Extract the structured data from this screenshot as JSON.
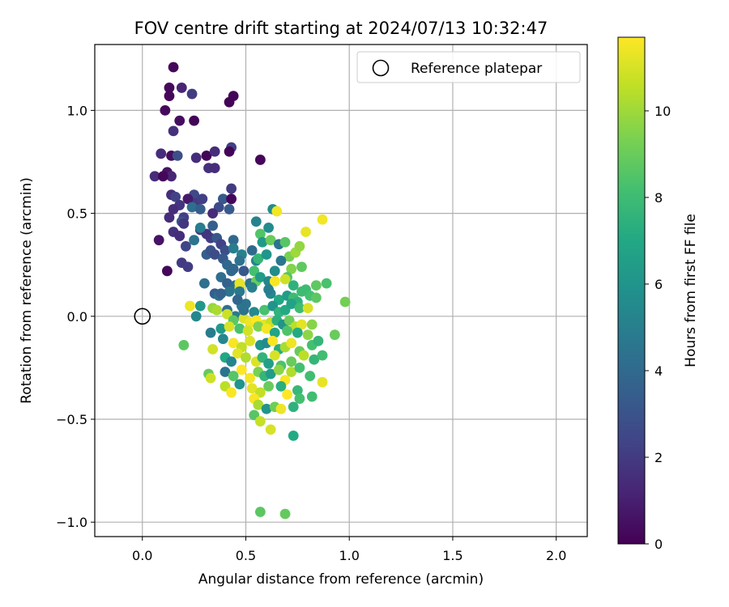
{
  "chart_data": {
    "type": "scatter",
    "title": "FOV centre drift starting at 2024/07/13 10:32:47",
    "xlabel": "Angular distance from reference (arcmin)",
    "ylabel": "Rotation from reference (arcmin)",
    "xlim": [
      -0.23,
      2.15
    ],
    "ylim": [
      -1.07,
      1.32
    ],
    "xticks": [
      0.0,
      0.5,
      1.0,
      1.5,
      2.0
    ],
    "xtick_labels": [
      "0.0",
      "0.5",
      "1.0",
      "1.5",
      "2.0"
    ],
    "yticks": [
      -1.0,
      -0.5,
      0.0,
      0.5,
      1.0
    ],
    "ytick_labels": [
      "−1.0",
      "−0.5",
      "0.0",
      "0.5",
      "1.0"
    ],
    "grid": true,
    "legend": {
      "position": "top-right",
      "entries": [
        {
          "label": "Reference platepar",
          "marker": "open-circle"
        }
      ]
    },
    "reference_point": {
      "x": 0.0,
      "y": 0.0
    },
    "colorbar": {
      "label": "Hours from first FF file",
      "colormap": "viridis",
      "range": [
        0,
        11.7
      ],
      "ticks": [
        0,
        2,
        4,
        6,
        8,
        10
      ],
      "tick_labels": [
        "0",
        "2",
        "4",
        "6",
        "8",
        "10"
      ]
    },
    "series": [
      {
        "points": [
          [
            0.15,
            1.21,
            0.2
          ],
          [
            0.13,
            1.11,
            0.3
          ],
          [
            0.19,
            1.11,
            1.2
          ],
          [
            0.13,
            1.07,
            0.2
          ],
          [
            0.24,
            1.08,
            2.0
          ],
          [
            0.44,
            1.07,
            0.1
          ],
          [
            0.42,
            1.04,
            0.1
          ],
          [
            0.11,
            1.0,
            0.3
          ],
          [
            0.18,
            0.95,
            0.4
          ],
          [
            0.15,
            0.9,
            1.6
          ],
          [
            0.25,
            0.95,
            0.1
          ],
          [
            0.43,
            0.82,
            2.2
          ],
          [
            0.42,
            0.8,
            0.1
          ],
          [
            0.09,
            0.79,
            1.5
          ],
          [
            0.14,
            0.78,
            0.4
          ],
          [
            0.17,
            0.78,
            2.8
          ],
          [
            0.26,
            0.77,
            1.5
          ],
          [
            0.31,
            0.78,
            0.1
          ],
          [
            0.35,
            0.8,
            1.5
          ],
          [
            0.57,
            0.76,
            0.2
          ],
          [
            0.12,
            0.7,
            0.6
          ],
          [
            0.32,
            0.72,
            1.6
          ],
          [
            0.35,
            0.72,
            1.5
          ],
          [
            0.06,
            0.68,
            1.5
          ],
          [
            0.14,
            0.68,
            1.2
          ],
          [
            0.1,
            0.68,
            0.2
          ],
          [
            0.43,
            0.62,
            2.0
          ],
          [
            0.14,
            0.59,
            1.5
          ],
          [
            0.16,
            0.58,
            2.3
          ],
          [
            0.25,
            0.59,
            2.6
          ],
          [
            0.26,
            0.55,
            2.0
          ],
          [
            0.22,
            0.57,
            0.8
          ],
          [
            0.29,
            0.57,
            2.2
          ],
          [
            0.39,
            0.57,
            3.2
          ],
          [
            0.43,
            0.57,
            0.2
          ],
          [
            0.24,
            0.53,
            4.2
          ],
          [
            0.37,
            0.53,
            2.7
          ],
          [
            0.18,
            0.54,
            1.8
          ],
          [
            0.15,
            0.52,
            1.5
          ],
          [
            0.13,
            0.48,
            1.5
          ],
          [
            0.2,
            0.48,
            2.2
          ],
          [
            0.19,
            0.46,
            3.0
          ],
          [
            0.28,
            0.52,
            3.4
          ],
          [
            0.34,
            0.5,
            1.4
          ],
          [
            0.42,
            0.52,
            3.3
          ],
          [
            0.15,
            0.41,
            1.6
          ],
          [
            0.18,
            0.39,
            1.5
          ],
          [
            0.28,
            0.42,
            2.0
          ],
          [
            0.33,
            0.38,
            2.1
          ],
          [
            0.36,
            0.38,
            3.2
          ],
          [
            0.38,
            0.35,
            2.3
          ],
          [
            0.44,
            0.37,
            4.0
          ],
          [
            0.25,
            0.37,
            4.4
          ],
          [
            0.31,
            0.4,
            1.8
          ],
          [
            0.34,
            0.44,
            3.5
          ],
          [
            0.28,
            0.43,
            4.9
          ],
          [
            0.2,
            0.45,
            1.8
          ],
          [
            0.08,
            0.37,
            0.6
          ],
          [
            0.21,
            0.34,
            2.4
          ],
          [
            0.31,
            0.3,
            3.5
          ],
          [
            0.33,
            0.32,
            3.0
          ],
          [
            0.35,
            0.3,
            2.7
          ],
          [
            0.4,
            0.32,
            2.8
          ],
          [
            0.44,
            0.33,
            4.9
          ],
          [
            0.48,
            0.3,
            5.1
          ],
          [
            0.53,
            0.32,
            4.0
          ],
          [
            0.19,
            0.26,
            2.0
          ],
          [
            0.22,
            0.24,
            2.1
          ],
          [
            0.12,
            0.22,
            0.2
          ],
          [
            0.39,
            0.28,
            3.3
          ],
          [
            0.41,
            0.25,
            4.0
          ],
          [
            0.44,
            0.23,
            3.8
          ],
          [
            0.47,
            0.27,
            4.4
          ],
          [
            0.49,
            0.22,
            3.2
          ],
          [
            0.43,
            0.22,
            3.9
          ],
          [
            0.3,
            0.16,
            4.3
          ],
          [
            0.38,
            0.19,
            4.2
          ],
          [
            0.41,
            0.16,
            3.6
          ],
          [
            0.45,
            0.15,
            4.1
          ],
          [
            0.52,
            0.16,
            4.5
          ],
          [
            0.47,
            0.14,
            10.5
          ],
          [
            0.47,
            0.16,
            11.3
          ],
          [
            0.55,
            0.17,
            9.0
          ],
          [
            0.35,
            0.11,
            3.5
          ],
          [
            0.42,
            0.12,
            4.6
          ],
          [
            0.47,
            0.12,
            4.7
          ],
          [
            0.53,
            0.14,
            5.0
          ],
          [
            0.37,
            0.1,
            4.3
          ],
          [
            0.55,
            0.46,
            5.2
          ],
          [
            0.57,
            0.4,
            8.5
          ],
          [
            0.58,
            0.36,
            6.3
          ],
          [
            0.61,
            0.43,
            5.6
          ],
          [
            0.62,
            0.37,
            9.0
          ],
          [
            0.63,
            0.52,
            5.6
          ],
          [
            0.65,
            0.51,
            11.5
          ],
          [
            0.66,
            0.35,
            4.5
          ],
          [
            0.69,
            0.36,
            8.6
          ],
          [
            0.71,
            0.29,
            9.3
          ],
          [
            0.55,
            0.27,
            5.2
          ],
          [
            0.56,
            0.28,
            7.7
          ],
          [
            0.6,
            0.3,
            6.1
          ],
          [
            0.64,
            0.22,
            5.6
          ],
          [
            0.67,
            0.27,
            4.6
          ],
          [
            0.72,
            0.23,
            9.5
          ],
          [
            0.74,
            0.31,
            10.0
          ],
          [
            0.76,
            0.34,
            9.8
          ],
          [
            0.77,
            0.24,
            8.8
          ],
          [
            0.79,
            0.41,
            11.3
          ],
          [
            0.54,
            0.22,
            8.2
          ],
          [
            0.57,
            0.19,
            6.4
          ],
          [
            0.61,
            0.17,
            5.4
          ],
          [
            0.64,
            0.17,
            11.6
          ],
          [
            0.7,
            0.19,
            8.5
          ],
          [
            0.69,
            0.18,
            10.8
          ],
          [
            0.73,
            0.15,
            7.5
          ],
          [
            0.79,
            0.13,
            8.0
          ],
          [
            0.84,
            0.15,
            8.8
          ],
          [
            0.87,
            0.47,
            11.5
          ],
          [
            0.89,
            0.16,
            8.3
          ],
          [
            0.62,
            0.11,
            5.4
          ],
          [
            0.66,
            0.08,
            7.0
          ],
          [
            0.7,
            0.1,
            6.4
          ],
          [
            0.73,
            0.09,
            8.0
          ],
          [
            0.75,
            0.07,
            7.5
          ],
          [
            0.81,
            0.1,
            8.2
          ],
          [
            0.84,
            0.09,
            8.7
          ],
          [
            0.98,
            0.07,
            9.2
          ],
          [
            0.77,
            0.12,
            8.0
          ],
          [
            0.61,
            0.13,
            4.9
          ],
          [
            0.41,
            0.03,
            4.3
          ],
          [
            0.45,
            0.0,
            4.8
          ],
          [
            0.48,
            0.05,
            5.0
          ],
          [
            0.5,
            0.06,
            4.5
          ],
          [
            0.54,
            0.02,
            5.5
          ],
          [
            0.59,
            0.03,
            8.3
          ],
          [
            0.63,
            0.05,
            6.0
          ],
          [
            0.66,
            0.02,
            7.6
          ],
          [
            0.69,
            0.03,
            7.1
          ],
          [
            0.72,
            0.06,
            6.7
          ],
          [
            0.76,
            0.04,
            8.0
          ],
          [
            0.8,
            0.04,
            11.0
          ],
          [
            0.28,
            0.05,
            6.2
          ],
          [
            0.34,
            0.04,
            9.9
          ],
          [
            0.36,
            0.03,
            10.2
          ],
          [
            0.23,
            0.05,
            11.4
          ],
          [
            0.26,
            0.0,
            5.4
          ],
          [
            0.41,
            0.01,
            10.8
          ],
          [
            0.44,
            -0.02,
            8.7
          ],
          [
            0.49,
            -0.01,
            11.1
          ],
          [
            0.52,
            -0.03,
            11.4
          ],
          [
            0.55,
            -0.02,
            11.7
          ],
          [
            0.59,
            -0.04,
            11.2
          ],
          [
            0.62,
            -0.03,
            10.7
          ],
          [
            0.65,
            -0.02,
            7.4
          ],
          [
            0.68,
            -0.04,
            6.0
          ],
          [
            0.71,
            -0.02,
            9.1
          ],
          [
            0.74,
            -0.05,
            10.5
          ],
          [
            0.77,
            -0.04,
            11.2
          ],
          [
            0.82,
            -0.04,
            9.6
          ],
          [
            0.33,
            -0.08,
            4.8
          ],
          [
            0.38,
            -0.06,
            6.3
          ],
          [
            0.42,
            -0.05,
            11.0
          ],
          [
            0.47,
            -0.06,
            8.3
          ],
          [
            0.51,
            -0.07,
            10.9
          ],
          [
            0.56,
            -0.05,
            9.4
          ],
          [
            0.6,
            -0.06,
            11.5
          ],
          [
            0.64,
            -0.08,
            6.8
          ],
          [
            0.7,
            -0.07,
            8.4
          ],
          [
            0.75,
            -0.08,
            7.1
          ],
          [
            0.8,
            -0.09,
            9.7
          ],
          [
            0.93,
            -0.09,
            9.0
          ],
          [
            0.2,
            -0.14,
            8.7
          ],
          [
            0.34,
            -0.16,
            10.9
          ],
          [
            0.39,
            -0.11,
            5.4
          ],
          [
            0.44,
            -0.13,
            11.6
          ],
          [
            0.48,
            -0.15,
            10.6
          ],
          [
            0.52,
            -0.12,
            11.1
          ],
          [
            0.57,
            -0.14,
            6.0
          ],
          [
            0.6,
            -0.13,
            5.6
          ],
          [
            0.63,
            -0.12,
            11.6
          ],
          [
            0.66,
            -0.16,
            7.2
          ],
          [
            0.69,
            -0.15,
            10.2
          ],
          [
            0.72,
            -0.13,
            11.4
          ],
          [
            0.76,
            -0.17,
            9.0
          ],
          [
            0.82,
            -0.14,
            8.2
          ],
          [
            0.85,
            -0.12,
            7.7
          ],
          [
            0.4,
            -0.2,
            7.0
          ],
          [
            0.43,
            -0.22,
            5.3
          ],
          [
            0.46,
            -0.18,
            11.2
          ],
          [
            0.5,
            -0.2,
            10.3
          ],
          [
            0.55,
            -0.22,
            11.1
          ],
          [
            0.58,
            -0.2,
            7.6
          ],
          [
            0.61,
            -0.23,
            6.6
          ],
          [
            0.64,
            -0.19,
            11.0
          ],
          [
            0.67,
            -0.24,
            8.4
          ],
          [
            0.72,
            -0.22,
            9.0
          ],
          [
            0.78,
            -0.19,
            10.5
          ],
          [
            0.83,
            -0.21,
            7.7
          ],
          [
            0.87,
            -0.19,
            8.1
          ],
          [
            0.4,
            -0.27,
            4.5
          ],
          [
            0.44,
            -0.29,
            8.6
          ],
          [
            0.48,
            -0.26,
            11.7
          ],
          [
            0.52,
            -0.3,
            11.5
          ],
          [
            0.56,
            -0.27,
            9.3
          ],
          [
            0.59,
            -0.29,
            7.7
          ],
          [
            0.62,
            -0.28,
            6.4
          ],
          [
            0.66,
            -0.26,
            9.7
          ],
          [
            0.69,
            -0.31,
            11.6
          ],
          [
            0.72,
            -0.27,
            10.3
          ],
          [
            0.76,
            -0.25,
            8.2
          ],
          [
            0.81,
            -0.29,
            8.1
          ],
          [
            0.87,
            -0.32,
            11.3
          ],
          [
            0.32,
            -0.28,
            8.9
          ],
          [
            0.33,
            -0.3,
            10.8
          ],
          [
            0.4,
            -0.34,
            10.5
          ],
          [
            0.43,
            -0.37,
            11.6
          ],
          [
            0.47,
            -0.33,
            6.0
          ],
          [
            0.53,
            -0.35,
            11.2
          ],
          [
            0.57,
            -0.37,
            10.6
          ],
          [
            0.61,
            -0.34,
            9.0
          ],
          [
            0.67,
            -0.34,
            7.3
          ],
          [
            0.7,
            -0.38,
            11.7
          ],
          [
            0.75,
            -0.36,
            7.8
          ],
          [
            0.82,
            -0.39,
            8.1
          ],
          [
            0.54,
            -0.4,
            11.6
          ],
          [
            0.56,
            -0.43,
            10.2
          ],
          [
            0.6,
            -0.45,
            6.0
          ],
          [
            0.64,
            -0.44,
            9.1
          ],
          [
            0.67,
            -0.45,
            11.4
          ],
          [
            0.73,
            -0.44,
            7.5
          ],
          [
            0.76,
            -0.4,
            8.2
          ],
          [
            0.54,
            -0.48,
            8.6
          ],
          [
            0.57,
            -0.51,
            10.7
          ],
          [
            0.62,
            -0.55,
            11.0
          ],
          [
            0.73,
            -0.58,
            7.1
          ],
          [
            0.57,
            -0.95,
            8.7
          ],
          [
            0.69,
            -0.96,
            8.9
          ],
          [
            0.38,
            0.11,
            3.6
          ],
          [
            0.46,
            0.08,
            3.9
          ],
          [
            0.49,
            0.03,
            4.4
          ]
        ]
      }
    ]
  }
}
